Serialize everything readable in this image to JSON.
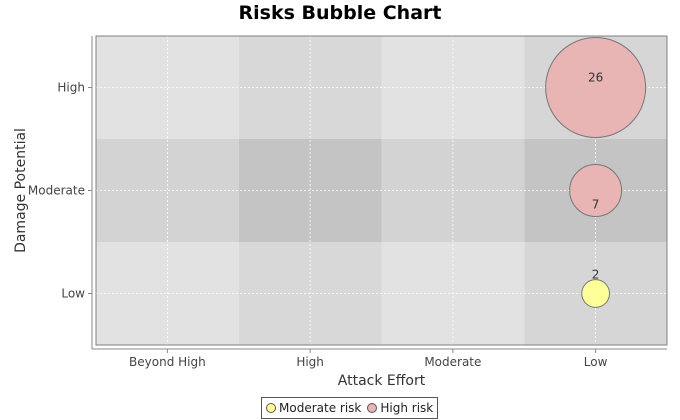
{
  "chart_data": {
    "type": "scatter",
    "subtype": "bubble",
    "title": "Risks Bubble Chart",
    "xlabel": "Attack Effort",
    "ylabel": "Damage Potential",
    "x_categories": [
      "Beyond High",
      "High",
      "Moderate",
      "Low"
    ],
    "y_categories": [
      "Low",
      "Moderate",
      "High"
    ],
    "series": [
      {
        "name": "Moderate risk",
        "color": "#ffff99",
        "points": [
          {
            "x": "Low",
            "y": "Low",
            "value": 2
          }
        ]
      },
      {
        "name": "High risk",
        "color": "#e8b4b4",
        "points": [
          {
            "x": "Low",
            "y": "High",
            "value": 26
          },
          {
            "x": "Low",
            "y": "Moderate",
            "value": 7
          }
        ]
      }
    ],
    "grid": true,
    "legend_position": "bottom"
  }
}
